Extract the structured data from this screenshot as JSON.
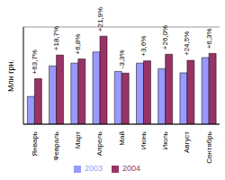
{
  "chart_data": {
    "type": "bar",
    "y_label": "Млн грн.",
    "categories": [
      "Январь",
      "Февраль",
      "Март",
      "Апрель",
      "Май",
      "Июнь",
      "Июль",
      "Август",
      "Сентябрь"
    ],
    "series": [
      {
        "name": "2003",
        "color": "#9999ff",
        "values": [
          10,
          21,
          22,
          26,
          19,
          22,
          20,
          18.5,
          24
        ]
      },
      {
        "name": "2004",
        "color": "#993366",
        "values": [
          16.4,
          24.9,
          23.5,
          31.7,
          18.4,
          22.8,
          25.2,
          23,
          25.5
        ]
      }
    ],
    "annotations": [
      "+63,7%",
      "+18,7%",
      "+6,8%",
      "+21,9%",
      "-3,3%",
      "+3,6%",
      "+26,0%",
      "+24,5%",
      "+6,3%"
    ],
    "ylim": [
      0,
      35
    ],
    "yticks": [
      0,
      10,
      20,
      30
    ],
    "grid": true,
    "legend": "bottom",
    "tick_labels": "x"
  }
}
